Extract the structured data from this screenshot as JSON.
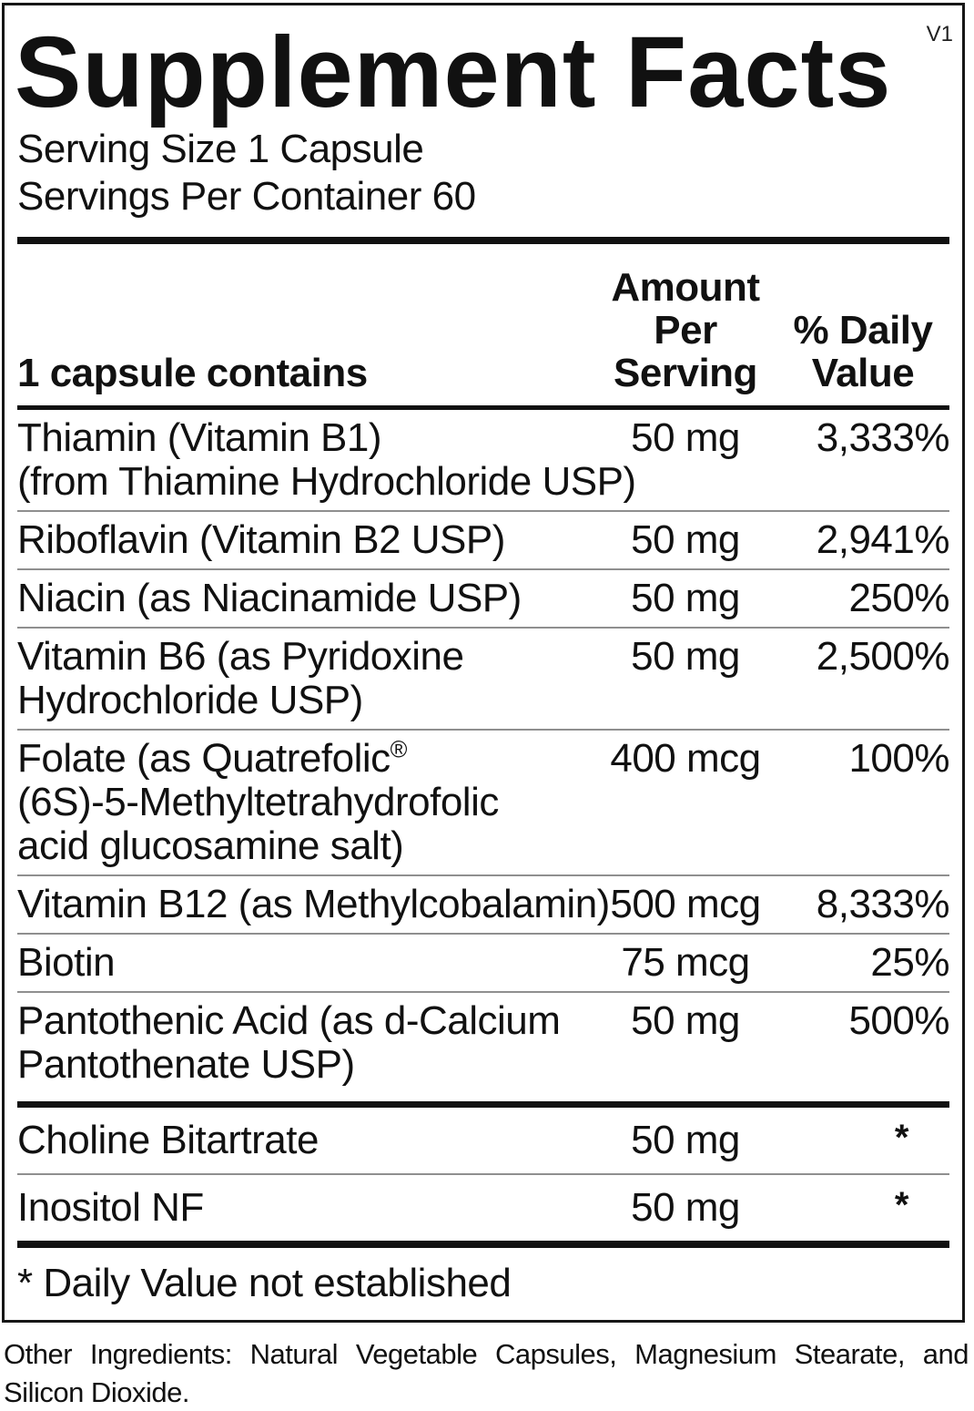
{
  "version": "V1",
  "title": "Supplement Facts",
  "serving": {
    "size": "Serving Size 1 Capsule",
    "per_container": "Servings Per Container 60"
  },
  "table": {
    "header": {
      "left": "1 capsule contains",
      "amount_line1": "Amount Per",
      "amount_line2": "Serving",
      "dv_line1": "% Daily",
      "dv_line2": "Value"
    },
    "rows": [
      {
        "name_lines": [
          "Thiamin (Vitamin B1)",
          "(from Thiamine Hydrochloride USP)"
        ],
        "amount": "50 mg",
        "dv": "3,333%"
      },
      {
        "name_lines": [
          "Riboflavin (Vitamin B2 USP)"
        ],
        "amount": "50 mg",
        "dv": "2,941%"
      },
      {
        "name_lines": [
          "Niacin (as Niacinamide USP)"
        ],
        "amount": "50 mg",
        "dv": "250%"
      },
      {
        "name_lines": [
          "Vitamin B6 (as Pyridoxine",
          "Hydrochloride USP)"
        ],
        "amount": "50 mg",
        "dv": "2,500%"
      },
      {
        "name_lines": [
          "Folate (as Quatrefolic",
          "(6S)-5-Methyltetrahydrofolic",
          "acid glucosamine salt)"
        ],
        "name_sup": "®",
        "amount": "400 mcg",
        "dv": "100%"
      },
      {
        "name_lines": [
          "Vitamin B12 (as Methylcobalamin)"
        ],
        "amount": "500 mcg",
        "dv": "8,333%"
      },
      {
        "name_lines": [
          "Biotin"
        ],
        "amount": "75 mcg",
        "dv": "25%"
      },
      {
        "name_lines": [
          "Pantothenic Acid (as d-Calcium",
          "Pantothenate USP)"
        ],
        "amount": "50 mg",
        "dv": "500%"
      }
    ],
    "rows_no_dv": [
      {
        "name_lines": [
          "Choline Bitartrate"
        ],
        "amount": "50 mg",
        "dv": "*"
      },
      {
        "name_lines": [
          "Inositol NF"
        ],
        "amount": "50 mg",
        "dv": "*"
      }
    ]
  },
  "footnote": "* Daily Value not established",
  "other_ingredients": "Other Ingredients: Natural Vegetable Capsules, Magnesium Stearate, and Silicon Dioxide.",
  "colors": {
    "text": "#111111",
    "thick_bar": "#111111",
    "thin_separator": "#8f8f8f",
    "border": "#161616",
    "background": "#ffffff"
  }
}
